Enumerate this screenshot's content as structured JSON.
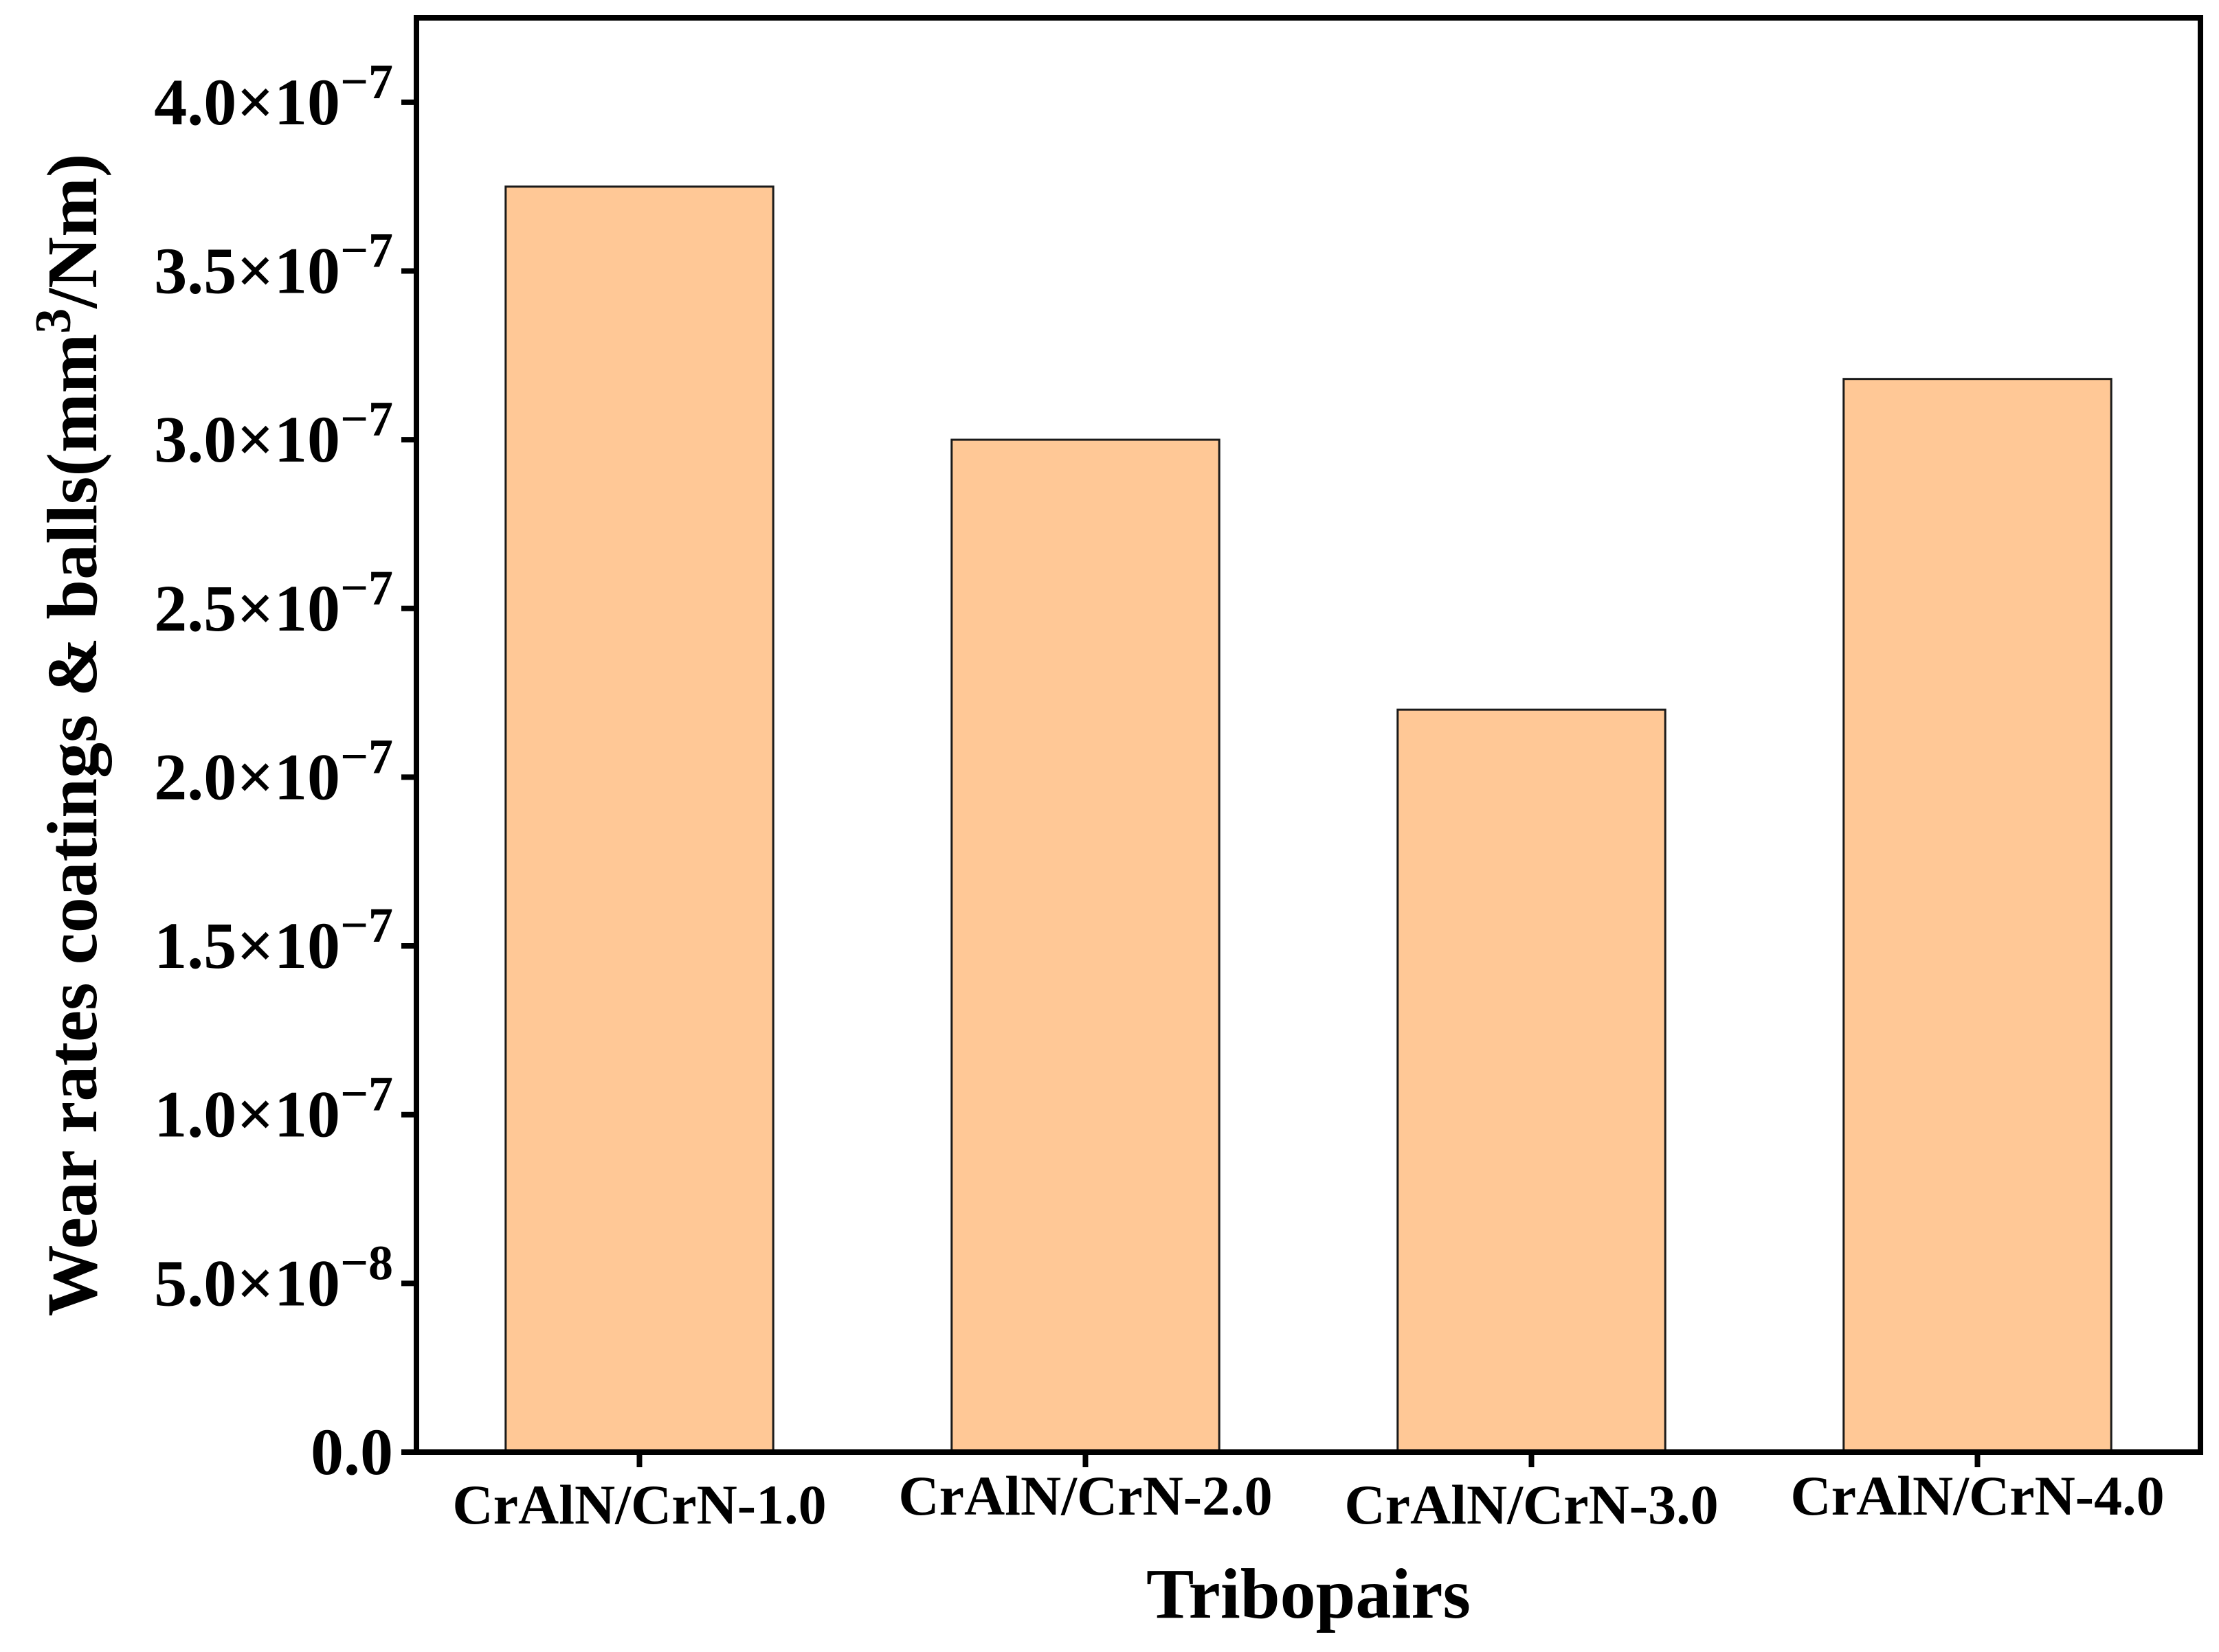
{
  "chart_data": {
    "type": "bar",
    "title": "",
    "xlabel": "Tribopairs",
    "ylabel": {
      "prefix": "Wear rates coatings & balls(mm",
      "sup": "3",
      "suffix": "/Nm)"
    },
    "categories": [
      "CrAlN/CrN-1.0",
      "CrAlN/CrN-2.0",
      "CrAlN/CrN-3.0",
      "CrAlN/CrN-4.0"
    ],
    "values": [
      3.75e-07,
      3e-07,
      2.2e-07,
      3.18e-07
    ],
    "ylim": [
      0,
      4.25e-07
    ],
    "yticks": [
      {
        "value": 0,
        "mantissa": "0.0",
        "exponent": ""
      },
      {
        "value": 5e-08,
        "mantissa": "5.0×10",
        "exponent": "−8"
      },
      {
        "value": 1e-07,
        "mantissa": "1.0×10",
        "exponent": "−7"
      },
      {
        "value": 1.5e-07,
        "mantissa": "1.5×10",
        "exponent": "−7"
      },
      {
        "value": 2e-07,
        "mantissa": "2.0×10",
        "exponent": "−7"
      },
      {
        "value": 2.5e-07,
        "mantissa": "2.5×10",
        "exponent": "−7"
      },
      {
        "value": 3e-07,
        "mantissa": "3.0×10",
        "exponent": "−7"
      },
      {
        "value": 3.5e-07,
        "mantissa": "3.5×10",
        "exponent": "−7"
      },
      {
        "value": 4e-07,
        "mantissa": "4.0×10",
        "exponent": "−7"
      }
    ],
    "bar_color": "#FFC896",
    "bar_edge_color": "#1a1a1a",
    "grid": false,
    "legend": "none"
  }
}
